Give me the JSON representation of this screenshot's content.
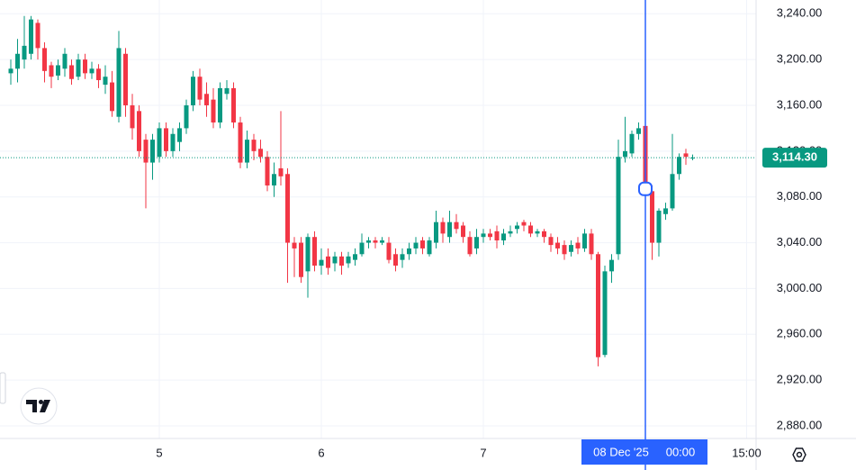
{
  "chart_data": {
    "type": "candlestick",
    "up_color": "#089981",
    "down_color": "#f23645",
    "x": [
      -22,
      -21,
      -20,
      -19,
      -18,
      -17,
      -16,
      -15,
      -14,
      -13,
      -12,
      -11,
      -10,
      -9,
      -8,
      -7,
      -6,
      -5,
      -4,
      -3,
      -2,
      -1,
      0,
      1,
      2,
      3,
      4,
      5,
      6,
      7,
      8,
      9,
      10,
      11,
      12,
      13,
      14,
      15,
      16,
      17,
      18,
      19,
      20,
      21,
      22,
      23,
      24,
      25,
      26,
      27,
      28,
      29,
      30,
      31,
      32,
      33,
      34,
      35,
      36,
      37,
      38,
      39,
      40,
      41,
      42,
      43,
      44,
      45,
      46,
      47,
      48,
      49,
      50,
      51,
      52,
      53,
      54,
      55,
      56,
      57,
      58,
      59,
      60,
      61,
      62,
      63,
      64,
      65,
      66,
      67,
      68,
      69,
      70,
      71,
      72,
      73,
      74,
      75,
      76,
      77,
      78,
      79
    ],
    "open": [
      3188,
      3192,
      3200,
      3205,
      3232,
      3210,
      3195,
      3186,
      3192,
      3195,
      3185,
      3200,
      3188,
      3192,
      3178,
      3180,
      3150,
      3205,
      3160,
      3155,
      3130,
      3110,
      3115,
      3140,
      3120,
      3128,
      3140,
      3160,
      3185,
      3170,
      3165,
      3145,
      3170,
      3175,
      3145,
      3110,
      3130,
      3122,
      3115,
      3090,
      3105,
      3100,
      3040,
      3040,
      3015,
      3045,
      3020,
      3028,
      3022,
      3028,
      3022,
      3025,
      3030,
      3040,
      3042,
      3040,
      3040,
      3030,
      3025,
      3030,
      3035,
      3042,
      3030,
      3040,
      3058,
      3045,
      3058,
      3055,
      3045,
      3035,
      3045,
      3048,
      3050,
      3042,
      3048,
      3052,
      3058,
      3055,
      3048,
      3050,
      3045,
      3040,
      3038,
      3032,
      3040,
      3035,
      3048,
      3030,
      2942,
      3015,
      3030,
      3115,
      3118,
      3135,
      3142,
      3085,
      3040,
      3065,
      3070,
      3100,
      3118,
      3114
    ],
    "high": [
      3200,
      3218,
      3238,
      3238,
      3235,
      3215,
      3198,
      3200,
      3210,
      3200,
      3205,
      3205,
      3198,
      3196,
      3195,
      3190,
      3225,
      3210,
      3170,
      3160,
      3135,
      3135,
      3145,
      3145,
      3140,
      3145,
      3165,
      3190,
      3192,
      3180,
      3175,
      3180,
      3182,
      3180,
      3150,
      3138,
      3135,
      3130,
      3120,
      3110,
      3155,
      3105,
      3045,
      3045,
      3048,
      3050,
      3035,
      3035,
      3032,
      3032,
      3032,
      3035,
      3048,
      3045,
      3045,
      3045,
      3045,
      3035,
      3035,
      3040,
      3045,
      3045,
      3045,
      3068,
      3062,
      3068,
      3065,
      3058,
      3050,
      3052,
      3052,
      3052,
      3055,
      3052,
      3055,
      3058,
      3060,
      3058,
      3052,
      3052,
      3048,
      3045,
      3042,
      3042,
      3045,
      3052,
      3052,
      3032,
      3020,
      3030,
      3130,
      3150,
      3138,
      3145,
      3145,
      3090,
      3070,
      3075,
      3135,
      3118,
      3122,
      3117
    ],
    "low": [
      3178,
      3180,
      3192,
      3200,
      3200,
      3180,
      3175,
      3182,
      3185,
      3178,
      3182,
      3183,
      3183,
      3175,
      3170,
      3150,
      3145,
      3150,
      3130,
      3115,
      3070,
      3095,
      3110,
      3115,
      3115,
      3120,
      3135,
      3155,
      3160,
      3150,
      3140,
      3140,
      3165,
      3140,
      3105,
      3105,
      3112,
      3110,
      3085,
      3080,
      3090,
      3005,
      3010,
      3005,
      2992,
      3015,
      3012,
      3012,
      3015,
      3012,
      3018,
      3020,
      3028,
      3035,
      3035,
      3038,
      3022,
      3015,
      3018,
      3025,
      3030,
      3030,
      3028,
      3035,
      3040,
      3040,
      3048,
      3040,
      3028,
      3030,
      3040,
      3042,
      3035,
      3038,
      3045,
      3048,
      3050,
      3045,
      3045,
      3040,
      3032,
      3030,
      3025,
      3028,
      3030,
      3032,
      3025,
      2932,
      2940,
      3005,
      3025,
      3110,
      3115,
      3130,
      3080,
      3025,
      3028,
      3060,
      3068,
      3095,
      3108,
      3112
    ],
    "close": [
      3192,
      3205,
      3212,
      3235,
      3210,
      3190,
      3185,
      3195,
      3205,
      3183,
      3200,
      3188,
      3192,
      3182,
      3185,
      3155,
      3210,
      3160,
      3140,
      3120,
      3110,
      3130,
      3140,
      3120,
      3135,
      3140,
      3160,
      3185,
      3165,
      3160,
      3145,
      3175,
      3175,
      3145,
      3110,
      3130,
      3120,
      3115,
      3090,
      3100,
      3098,
      3040,
      3035,
      3010,
      3045,
      3020,
      3025,
      3018,
      3028,
      3020,
      3028,
      3030,
      3040,
      3042,
      3040,
      3042,
      3025,
      3020,
      3030,
      3035,
      3040,
      3035,
      3042,
      3058,
      3048,
      3058,
      3052,
      3045,
      3030,
      3045,
      3048,
      3045,
      3042,
      3048,
      3050,
      3055,
      3055,
      3048,
      3050,
      3045,
      3038,
      3035,
      3030,
      3038,
      3035,
      3048,
      3030,
      2940,
      3015,
      3025,
      3115,
      3120,
      3135,
      3140,
      3085,
      3040,
      3068,
      3070,
      3100,
      3115,
      3115,
      3114.3
    ],
    "xlim": [
      -23.6,
      88.4
    ],
    "ylim": [
      2869,
      3252
    ],
    "xticks": [
      {
        "value": 0,
        "label": "5"
      },
      {
        "value": 24,
        "label": "6"
      },
      {
        "value": 48,
        "label": "7"
      },
      {
        "value": 87,
        "label": "15:00"
      }
    ],
    "yticks": [
      {
        "value": 2880,
        "label": "2,880.00"
      },
      {
        "value": 2920,
        "label": "2,920.00"
      },
      {
        "value": 2960,
        "label": "2,960.00"
      },
      {
        "value": 3000,
        "label": "3,000.00"
      },
      {
        "value": 3040,
        "label": "3,040.00"
      },
      {
        "value": 3080,
        "label": "3,080.00"
      },
      {
        "value": 3120,
        "label": "3,120.00"
      },
      {
        "value": 3160,
        "label": "3,160.00"
      },
      {
        "value": 3200,
        "label": "3,200.00"
      },
      {
        "value": 3240,
        "label": "3,240.00"
      }
    ],
    "grid": true,
    "last_price": {
      "value": 3114.3,
      "label": "3,114.30"
    },
    "crosshair": {
      "x": 72,
      "y": 3087,
      "color": "#2962ff",
      "date_label": "08 Dec '25",
      "time_label": "00:00"
    }
  }
}
